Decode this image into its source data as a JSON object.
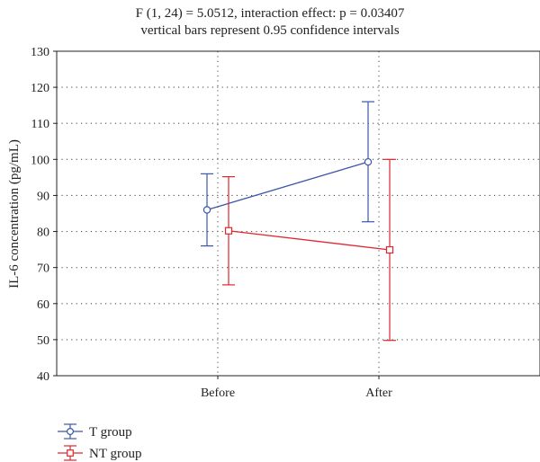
{
  "chart_data": {
    "type": "line",
    "title": "F (1, 24) = 5.0512, interaction effect: p = 0.03407",
    "subtitle": "vertical bars represent 0.95 confidence intervals",
    "ylabel": "IL-6 concentration (pg/mL)",
    "xlabel": "",
    "categories": [
      "Before",
      "After"
    ],
    "ylim": [
      40,
      130
    ],
    "yticks": [
      40,
      50,
      60,
      70,
      80,
      90,
      100,
      110,
      120,
      130
    ],
    "grid": true,
    "legend_position": "bottom-left",
    "series": [
      {
        "name": "T group",
        "color": "#3b56a8",
        "marker": "circle",
        "values": [
          86,
          99.3
        ],
        "ci_low": [
          76,
          82.7
        ],
        "ci_high": [
          96,
          116
        ]
      },
      {
        "name": "NT group",
        "color": "#e0262f",
        "marker": "square",
        "values": [
          80.2,
          74.9
        ],
        "ci_low": [
          65.2,
          49.8
        ],
        "ci_high": [
          95.2,
          100
        ]
      }
    ]
  }
}
